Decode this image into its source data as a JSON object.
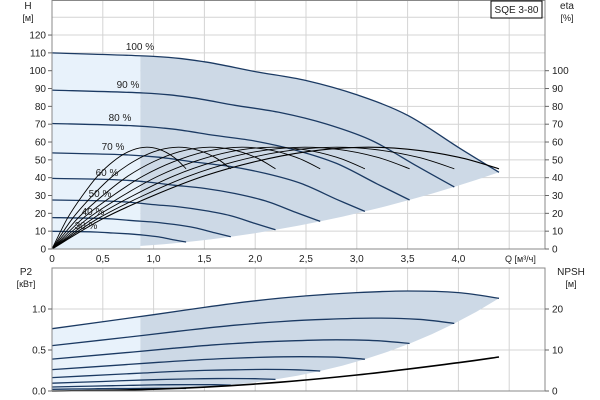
{
  "model_label": "SQE 3-80",
  "x_tick_labels": [
    "0",
    "0,5",
    "1,0",
    "1,5",
    "2,0",
    "2,5",
    "3,0",
    "3,5",
    "4,0"
  ],
  "x_axis_label": "Q [м³/ч]",
  "colors": {
    "curve": "#1b3a63",
    "efficiency": "#000000",
    "npsh": "#000000",
    "shade_light": "#e8f2fb",
    "shade_dark": "#cdd9e6",
    "grid": "#d4d4d4"
  },
  "chart_data": [
    {
      "type": "line",
      "name": "head-efficiency",
      "ylabel": "H",
      "yunit": "[м]",
      "y2label": "eta",
      "y2unit": "[%]",
      "xlabel": "Q [м³/ч]",
      "xlim": [
        0,
        4.5
      ],
      "ylim": [
        0,
        130
      ],
      "y2lim": [
        0,
        130
      ],
      "y_ticks": [
        "0",
        "10",
        "20",
        "30",
        "40",
        "50",
        "60",
        "70",
        "80",
        "90",
        "100",
        "110",
        "120"
      ],
      "y2_ticks": [
        "0",
        "10",
        "20",
        "30",
        "40",
        "50",
        "60",
        "70",
        "80",
        "90",
        "100"
      ],
      "grid": true,
      "light_region_max_q": 0.87,
      "head_series": [
        {
          "label": "100 %",
          "q": [
            0,
            1,
            1.5,
            2,
            2.5,
            3,
            3.5,
            4,
            4.4
          ],
          "h": [
            110,
            108,
            105,
            99.5,
            94.5,
            86.5,
            75,
            57,
            43
          ]
        },
        {
          "label": "90 %",
          "q": [
            0,
            0.9,
            1.35,
            1.8,
            2.25,
            2.7,
            3.15,
            3.6,
            3.96
          ],
          "h": [
            89.1,
            87.5,
            85.1,
            80.6,
            76.5,
            70.1,
            60.8,
            46.2,
            34.8
          ]
        },
        {
          "label": "80 %",
          "q": [
            0,
            0.8,
            1.2,
            1.6,
            2,
            2.4,
            2.8,
            3.2,
            3.52
          ],
          "h": [
            70.4,
            69.1,
            67.2,
            63.7,
            60.5,
            55.4,
            48,
            36.5,
            27.5
          ]
        },
        {
          "label": "70 %",
          "q": [
            0,
            0.7,
            1.05,
            1.4,
            1.75,
            2.1,
            2.45,
            2.8,
            3.08
          ],
          "h": [
            53.9,
            52.9,
            51.5,
            48.8,
            46.3,
            42.4,
            36.8,
            27.9,
            21.1
          ]
        },
        {
          "label": "60 %",
          "q": [
            0,
            0.6,
            0.9,
            1.2,
            1.5,
            1.8,
            2.1,
            2.4,
            2.64
          ],
          "h": [
            39.6,
            38.9,
            37.8,
            35.8,
            34,
            31.1,
            27,
            20.5,
            15.5
          ]
        },
        {
          "label": "50 %",
          "q": [
            0,
            0.5,
            0.75,
            1,
            1.25,
            1.5,
            1.75,
            2,
            2.2
          ],
          "h": [
            27.5,
            27,
            26.3,
            24.9,
            23.6,
            21.6,
            18.8,
            14.3,
            10.8
          ]
        },
        {
          "label": "40 %",
          "q": [
            0,
            0.4,
            0.6,
            0.8,
            1,
            1.2,
            1.4,
            1.6,
            1.76
          ],
          "h": [
            17.6,
            17.3,
            16.8,
            15.9,
            15.1,
            13.8,
            12,
            9.1,
            6.9
          ]
        },
        {
          "label": "30 %",
          "q": [
            0,
            0.3,
            0.45,
            0.6,
            0.75,
            0.9,
            1.05,
            1.2,
            1.32
          ],
          "h": [
            9.9,
            9.7,
            9.5,
            9,
            8.5,
            7.8,
            6.8,
            5.1,
            3.9
          ]
        }
      ],
      "efficiency_series": [
        {
          "q": [
            0,
            0.5,
            1,
            1.5,
            2,
            2.5,
            3,
            3.5,
            4,
            4.4
          ],
          "eta": [
            0,
            17,
            30,
            41,
            49,
            54.5,
            57,
            56,
            51.5,
            45
          ]
        },
        {
          "q": [
            0,
            0.45,
            0.9,
            1.35,
            1.8,
            2.25,
            2.7,
            3.15,
            3.6,
            3.96
          ],
          "eta": [
            0,
            17,
            30,
            41,
            49,
            54.5,
            57,
            56,
            51.5,
            45
          ]
        },
        {
          "q": [
            0,
            0.4,
            0.8,
            1.2,
            1.6,
            2,
            2.4,
            2.8,
            3.2,
            3.52
          ],
          "eta": [
            0,
            17,
            30,
            41,
            49,
            54.5,
            57,
            56,
            51.5,
            45
          ]
        },
        {
          "q": [
            0,
            0.35,
            0.7,
            1.05,
            1.4,
            1.75,
            2.1,
            2.45,
            2.8,
            3.08
          ],
          "eta": [
            0,
            17,
            30,
            41,
            49,
            54.5,
            57,
            56,
            51.5,
            45
          ]
        },
        {
          "q": [
            0,
            0.3,
            0.6,
            0.9,
            1.2,
            1.5,
            1.8,
            2.1,
            2.4,
            2.64
          ],
          "eta": [
            0,
            17,
            30,
            41,
            49,
            54.5,
            57,
            56,
            51.5,
            45
          ]
        },
        {
          "q": [
            0,
            0.25,
            0.5,
            0.75,
            1,
            1.25,
            1.5,
            1.75,
            2,
            2.2
          ],
          "eta": [
            0,
            17,
            30,
            41,
            49,
            54.5,
            57,
            56,
            51.5,
            45
          ]
        },
        {
          "q": [
            0,
            0.2,
            0.4,
            0.6,
            0.8,
            1,
            1.2,
            1.4,
            1.6,
            1.76
          ],
          "eta": [
            0,
            17,
            30,
            41,
            49,
            54.5,
            57,
            56,
            51.5,
            45
          ]
        },
        {
          "q": [
            0,
            0.15,
            0.3,
            0.45,
            0.6,
            0.75,
            0.9,
            1.05,
            1.2,
            1.32
          ],
          "eta": [
            0,
            17,
            30,
            41,
            49,
            54.5,
            57,
            56,
            51.5,
            45
          ]
        }
      ]
    },
    {
      "type": "line",
      "name": "power-npsh",
      "ylabel": "P2",
      "yunit": "[кВт]",
      "y2label": "NPSH",
      "y2unit": "[м]",
      "xlim": [
        0,
        4.5
      ],
      "ylim": [
        0,
        1.5
      ],
      "y2lim": [
        0,
        30
      ],
      "y_ticks": [
        {
          "v": 0,
          "label": "0.0"
        },
        {
          "v": 0.5,
          "label": "0.5"
        },
        {
          "v": 1.0,
          "label": "1.0"
        }
      ],
      "y2_ticks": [
        {
          "v": 0,
          "label": "0"
        },
        {
          "v": 10,
          "label": "10"
        },
        {
          "v": 20,
          "label": "20"
        }
      ],
      "grid": true,
      "light_region_max_q": 0.87,
      "power_series": [
        {
          "speed": "100 %",
          "q": [
            0,
            1,
            1.5,
            2,
            2.5,
            3,
            3.5,
            4,
            4.4
          ],
          "p": [
            0.76,
            0.93,
            1.02,
            1.1,
            1.16,
            1.2,
            1.22,
            1.2,
            1.13
          ]
        },
        {
          "speed": "90 %",
          "q": [
            0,
            0.9,
            1.35,
            1.8,
            2.25,
            2.7,
            3.15,
            3.6,
            3.96
          ],
          "p": [
            0.554,
            0.678,
            0.744,
            0.802,
            0.846,
            0.875,
            0.889,
            0.875,
            0.824
          ]
        },
        {
          "speed": "80 %",
          "q": [
            0,
            0.8,
            1.2,
            1.6,
            2,
            2.4,
            2.8,
            3.2,
            3.52
          ],
          "p": [
            0.389,
            0.476,
            0.522,
            0.563,
            0.594,
            0.614,
            0.625,
            0.614,
            0.579
          ]
        },
        {
          "speed": "70 %",
          "q": [
            0,
            0.7,
            1.05,
            1.4,
            1.75,
            2.1,
            2.45,
            2.8,
            3.08
          ],
          "p": [
            0.261,
            0.319,
            0.35,
            0.377,
            0.398,
            0.412,
            0.418,
            0.412,
            0.388
          ]
        },
        {
          "speed": "60 %",
          "q": [
            0,
            0.6,
            0.9,
            1.2,
            1.5,
            1.8,
            2.1,
            2.4,
            2.64
          ],
          "p": [
            0.164,
            0.201,
            0.22,
            0.238,
            0.251,
            0.259,
            0.264,
            0.259,
            0.244
          ]
        },
        {
          "speed": "50 %",
          "q": [
            0,
            0.5,
            0.75,
            1,
            1.25,
            1.5,
            1.75,
            2,
            2.2
          ],
          "p": [
            0.095,
            0.116,
            0.128,
            0.138,
            0.145,
            0.15,
            0.153,
            0.15,
            0.141
          ]
        },
        {
          "speed": "40 %",
          "q": [
            0,
            0.4,
            0.6,
            0.8,
            1,
            1.2,
            1.4,
            1.6,
            1.76
          ],
          "p": [
            0.049,
            0.06,
            0.065,
            0.07,
            0.074,
            0.077,
            0.078,
            0.077,
            0.072
          ]
        },
        {
          "speed": "30 %",
          "q": [
            0,
            0.3,
            0.45,
            0.6,
            0.75,
            0.9,
            1.05,
            1.2,
            1.32
          ],
          "p": [
            0.021,
            0.025,
            0.028,
            0.03,
            0.031,
            0.032,
            0.033,
            0.032,
            0.031
          ]
        }
      ],
      "npsh_series": {
        "q": [
          0,
          1,
          2,
          3,
          4,
          4.4
        ],
        "npsh": [
          0,
          0.43,
          1.7,
          3.9,
          6.9,
          8.3
        ]
      }
    }
  ]
}
